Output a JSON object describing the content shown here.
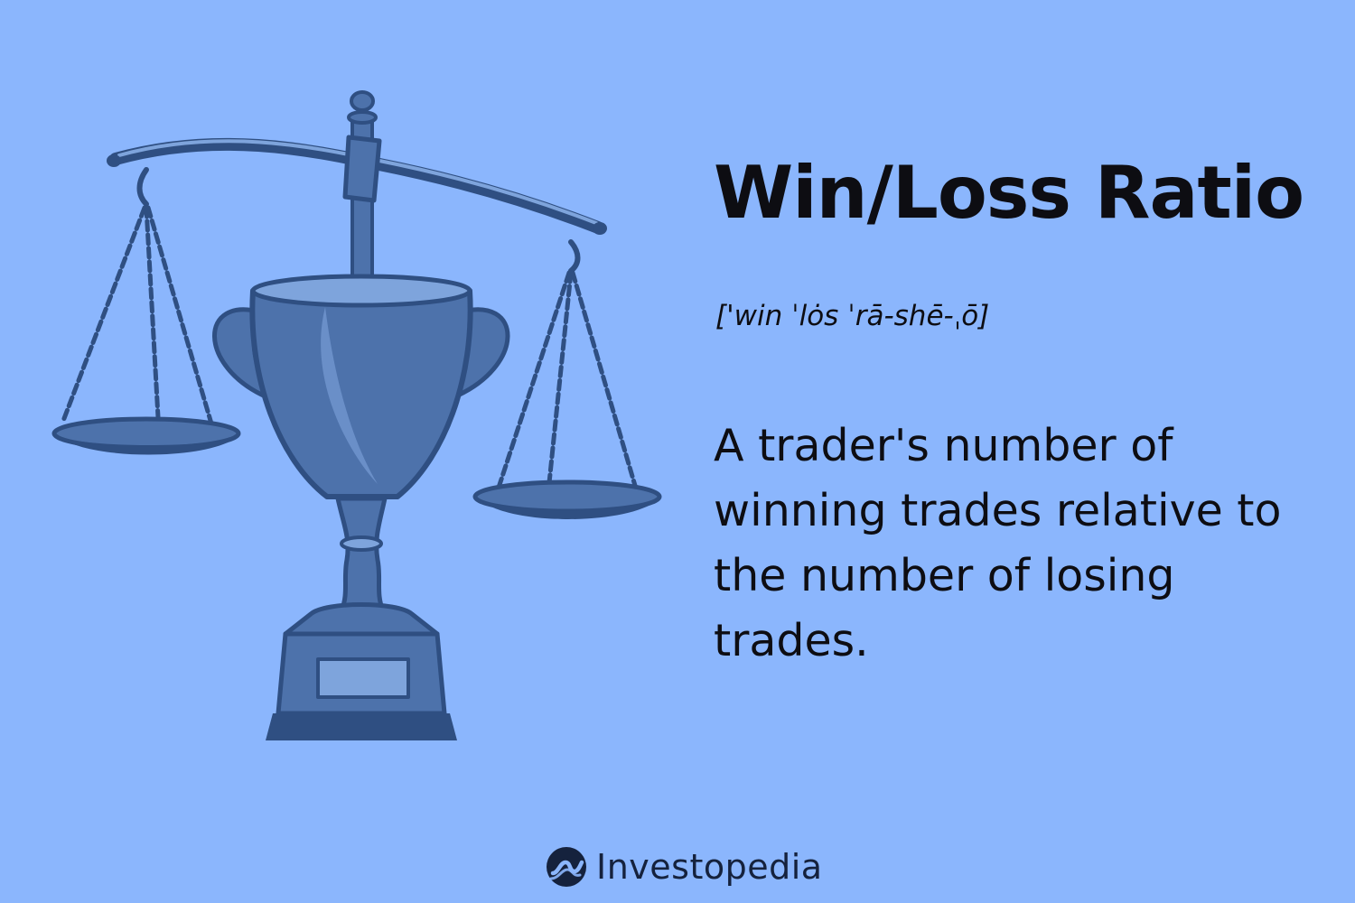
{
  "colors": {
    "background": "#8bb6fd",
    "text": "#0d0d12",
    "illustration_dark": "#2f4f82",
    "illustration_mid": "#4d72ab",
    "illustration_light": "#7ea4dc",
    "brand": "#15223d"
  },
  "header": {
    "title": "Win/Loss Ratio",
    "pronunciation": "['win ˈlȯs ˈrā-shē-ˌō]"
  },
  "main": {
    "definition": "A trader's number of winning trades relative to the number of losing trades."
  },
  "illustration": {
    "icon": "trophy-balance-scale-icon"
  },
  "footer": {
    "brand_name": "Investopedia",
    "brand_icon": "investopedia-logo-icon"
  }
}
